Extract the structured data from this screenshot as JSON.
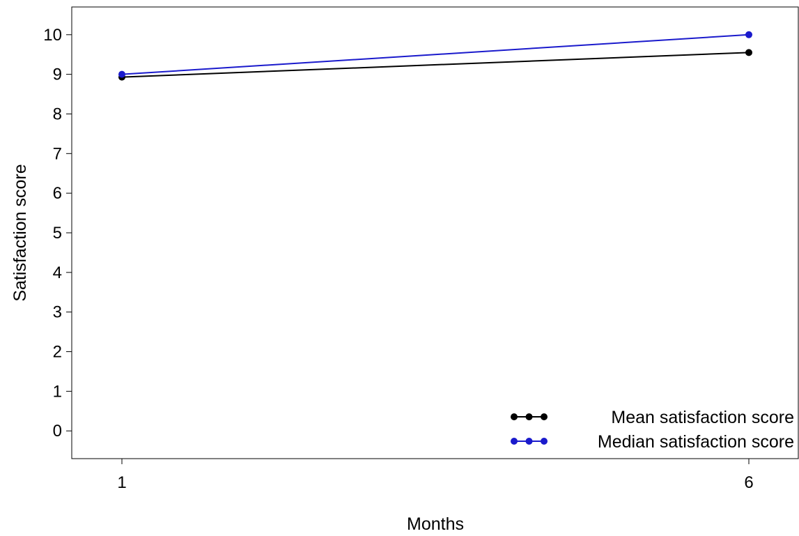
{
  "chart_data": {
    "type": "line",
    "title": "",
    "xlabel": "Months",
    "ylabel": "Satisfaction score",
    "x": [
      1,
      6
    ],
    "x_ticks": [
      "1",
      "6"
    ],
    "y_ticks": [
      "0",
      "1",
      "2",
      "3",
      "4",
      "5",
      "6",
      "7",
      "8",
      "9",
      "10"
    ],
    "ylim": [
      -0.7,
      10.7
    ],
    "grid": false,
    "legend_position": "bottom-right",
    "series": [
      {
        "name": "Mean satisfaction score",
        "values": [
          8.93,
          9.55
        ],
        "color": "#000000"
      },
      {
        "name": "Median satisfaction score",
        "values": [
          9.0,
          10.0
        ],
        "color": "#1a1acc"
      }
    ]
  }
}
